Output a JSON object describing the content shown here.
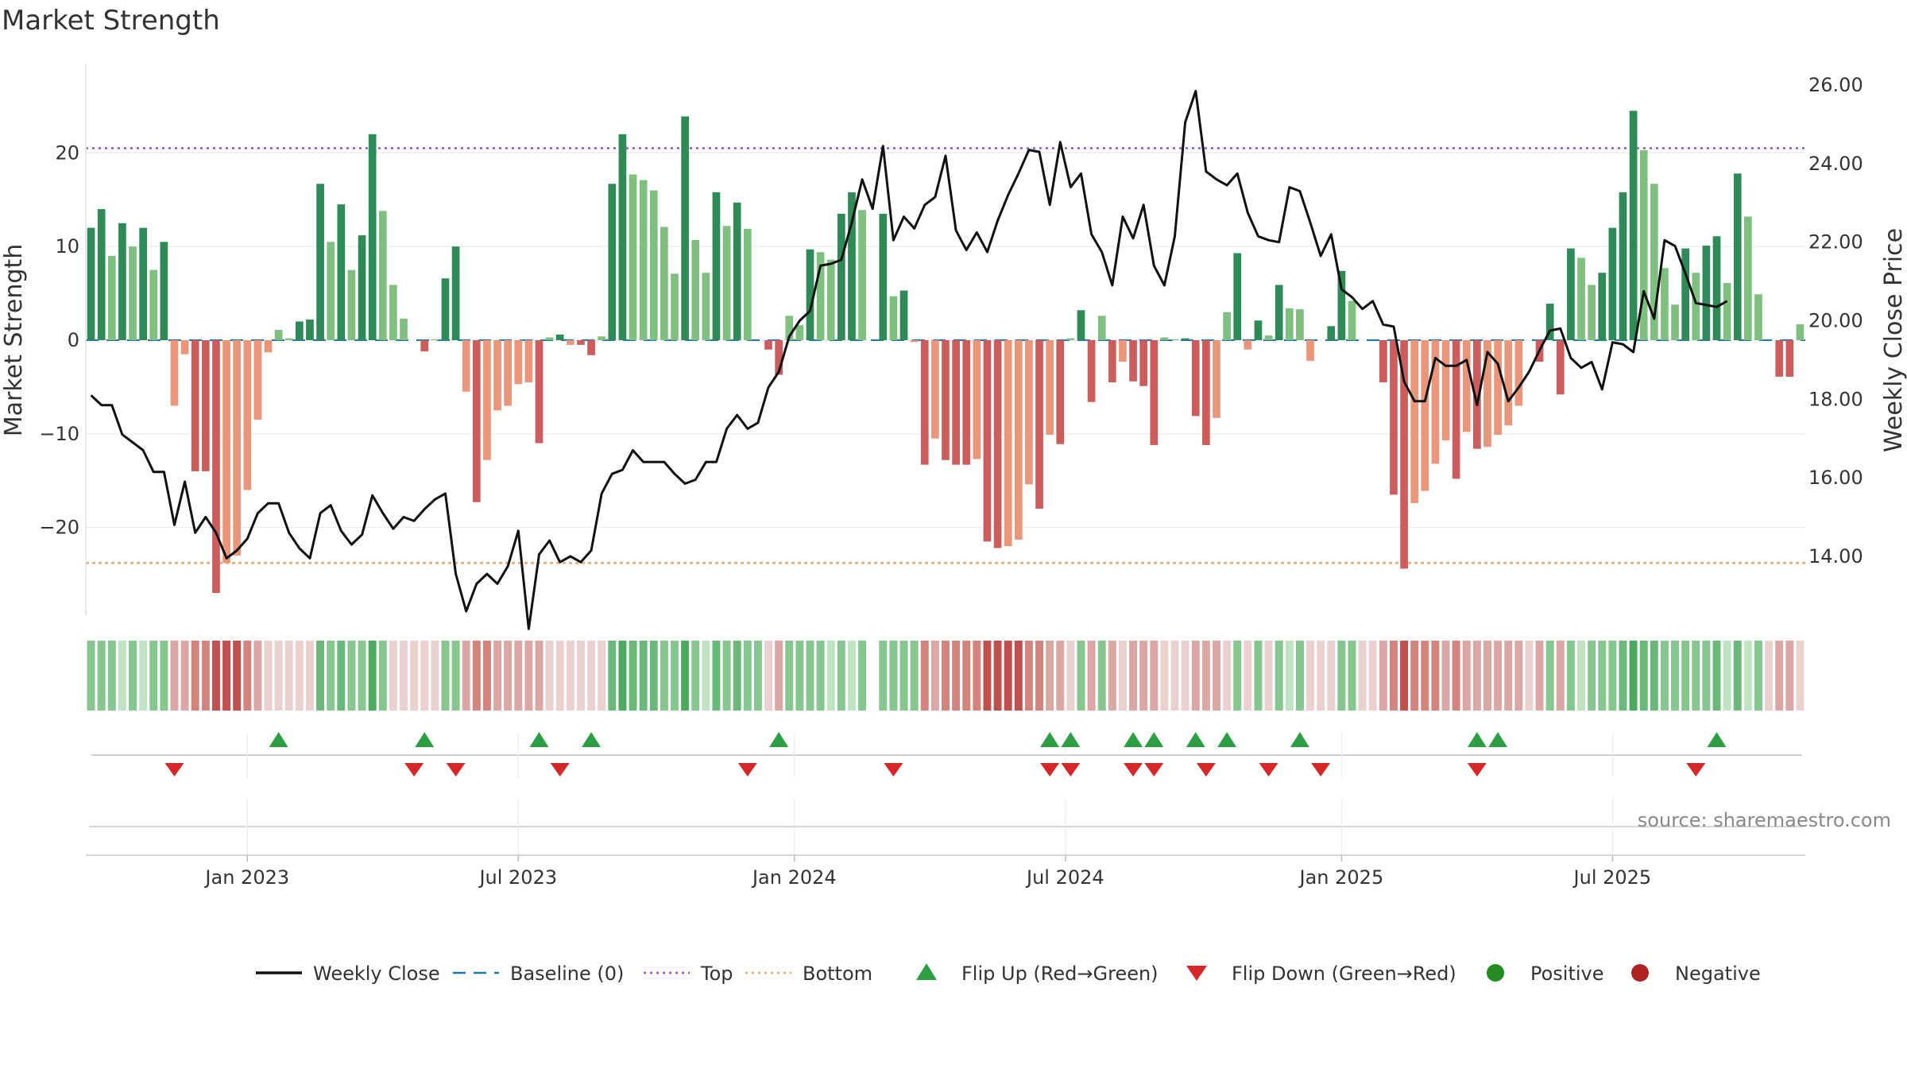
{
  "title": "Market Strength",
  "source": "source: sharemaestro.com",
  "colors": {
    "green_dark": "#2e8b57",
    "green_light": "#7fbf7f",
    "red_dark": "#cd5c5c",
    "red_light": "#e9967a",
    "close_line": "#111111",
    "baseline": "#1f77b4",
    "top": "#9b59b6",
    "bottom": "#f4a261",
    "flip_up": "#2e9e44",
    "flip_down": "#d62728",
    "positive": "#228b22",
    "negative": "#b22222"
  },
  "legend": [
    {
      "label": "Weekly Close",
      "kind": "line",
      "color": "#111111"
    },
    {
      "label": "Baseline (0)",
      "kind": "dash",
      "color": "#1f77b4"
    },
    {
      "label": "Top",
      "kind": "dot",
      "color": "#9b59b6"
    },
    {
      "label": "Bottom",
      "kind": "dot",
      "color": "#f4a261"
    },
    {
      "label": "Flip Up (Red→Green)",
      "kind": "up",
      "color": "#2e9e44"
    },
    {
      "label": "Flip Down (Green→Red)",
      "kind": "down",
      "color": "#d62728"
    },
    {
      "label": "Positive",
      "kind": "circle",
      "color": "#228b22"
    },
    {
      "label": "Negative",
      "kind": "circle",
      "color": "#b22222"
    }
  ],
  "chart_data": {
    "type": "bar",
    "title": "Market Strength",
    "ylabel_left": "Market Strength",
    "ylabel_right": "Weekly Close Price",
    "y_left_ticks": [
      20,
      10,
      0,
      -10,
      -20
    ],
    "y_left_tick_labels": [
      "20",
      "10",
      "0",
      "−10",
      "−20"
    ],
    "y_right_ticks": [
      26,
      24,
      22,
      20,
      18,
      16,
      14
    ],
    "y_right_tick_labels": [
      "26.00",
      "24.00",
      "22.00",
      "20.00",
      "18.00",
      "16.00",
      "14.00"
    ],
    "x_ticks": [
      "Jan 2023",
      "Jul 2023",
      "Jan 2024",
      "Jul 2024",
      "Jan 2025",
      "Jul 2025"
    ],
    "x_tick_weeks": [
      15.5,
      41.5,
      68,
      94,
      120.5,
      146.5
    ],
    "top_level": 20.5,
    "bottom_level": -23.8,
    "strength": [
      12,
      14,
      9,
      12.5,
      10,
      12,
      7.5,
      10.5,
      -7,
      -1.5,
      -14,
      -14,
      -27,
      -23.8,
      -23,
      -16,
      -8.5,
      -1.3,
      1.1,
      0.2,
      2,
      2.2,
      16.7,
      10.5,
      14.5,
      7.5,
      11.2,
      22,
      13.8,
      5.9,
      2.3,
      0,
      -1.2,
      0.1,
      6.6,
      10,
      -5.5,
      -17.3,
      -12.8,
      -7.5,
      -7,
      -4.7,
      -4.5,
      -11,
      0.3,
      0.6,
      -0.5,
      -0.5,
      -1.6,
      0.4,
      16.7,
      22,
      17.7,
      17.1,
      16,
      12.1,
      7.1,
      23.9,
      10.7,
      7.2,
      15.8,
      12.2,
      14.7,
      11.9,
      0,
      -1,
      -3.7,
      2.6,
      1.6,
      9.7,
      9.4,
      8.6,
      13.5,
      15.8,
      13.9,
      0,
      13.5,
      4.7,
      5.3,
      -0.2,
      -13.3,
      -10.5,
      -12.8,
      -13.3,
      -13.3,
      -12.7,
      -21.5,
      -22.2,
      -22,
      -21.3,
      -15.4,
      -18,
      -10.1,
      -11.1,
      0.2,
      3.2,
      -6.6,
      2.6,
      -4.5,
      -2.3,
      -4.4,
      -4.9,
      -11.2,
      0.3,
      0.1,
      0.2,
      -8.1,
      -11.2,
      -8.3,
      3,
      9.3,
      -1,
      2.1,
      0.5,
      5.9,
      3.4,
      3.3,
      -2.2,
      0,
      1.5,
      7.4,
      4.2,
      0,
      0,
      -4.5,
      -16.5,
      -24.4,
      -17.4,
      -16.1,
      -13.2,
      -10.7,
      -14.8,
      -9.8,
      -11.6,
      -11.4,
      -10.1,
      -9.1,
      -7,
      0,
      -2.3,
      3.9,
      -5.8,
      9.8,
      8.8,
      5.9,
      7.2,
      12,
      15.8,
      24.5,
      20.3,
      16.7,
      7.7,
      3.8,
      9.8,
      7.2,
      10.1,
      11.1,
      6.1,
      17.8,
      13.2,
      4.9,
      0,
      -3.9,
      -3.9,
      1.7
    ],
    "weekly_close": [
      18.1,
      17.85,
      17.85,
      17.1,
      16.9,
      16.7,
      16.15,
      16.15,
      14.8,
      15.9,
      14.6,
      15,
      14.6,
      13.95,
      14.15,
      14.45,
      15.1,
      15.35,
      15.35,
      14.6,
      14.2,
      13.95,
      15.1,
      15.3,
      14.65,
      14.3,
      14.55,
      15.55,
      15.1,
      14.7,
      15,
      14.9,
      15.2,
      15.45,
      15.6,
      13.55,
      12.6,
      13.3,
      13.55,
      13.3,
      13.75,
      14.65,
      12.15,
      14.05,
      14.4,
      13.85,
      14,
      13.85,
      14.15,
      15.6,
      16.1,
      16.2,
      16.7,
      16.4,
      16.4,
      16.4,
      16.1,
      15.85,
      15.95,
      16.4,
      16.4,
      17.25,
      17.6,
      17.25,
      17.4,
      18.3,
      18.7,
      19.6,
      20,
      20.25,
      21.4,
      21.45,
      21.55,
      22.5,
      23.6,
      22.85,
      24.45,
      22.05,
      22.65,
      22.35,
      22.95,
      23.15,
      24.2,
      22.3,
      21.8,
      22.25,
      21.75,
      22.55,
      23.2,
      23.75,
      24.35,
      24.3,
      22.95,
      24.55,
      23.4,
      23.75,
      22.2,
      21.75,
      20.9,
      22.65,
      22.1,
      22.95,
      21.4,
      20.9,
      22.15,
      25.05,
      25.85,
      23.8,
      23.6,
      23.45,
      23.75,
      22.75,
      22.15,
      22.05,
      22,
      23.4,
      23.3,
      22.5,
      21.65,
      22.2,
      20.8,
      20.6,
      20.3,
      20.5,
      19.9,
      19.85,
      18.45,
      17.95,
      17.95,
      19.05,
      18.85,
      18.85,
      19,
      17.85,
      19.2,
      18.9,
      17.95,
      18.3,
      18.7,
      19.25,
      19.75,
      19.8,
      19.05,
      18.8,
      18.95,
      18.25,
      19.45,
      19.4,
      19.2,
      20.75,
      20.05,
      22.05,
      21.9,
      21.2,
      20.45,
      20.4,
      20.35,
      20.5
    ],
    "heat_levels": [
      1,
      1,
      1,
      1,
      1,
      1,
      1,
      1,
      -1,
      -1,
      -2,
      -2,
      -3,
      -3,
      -3,
      -2,
      -1,
      0,
      0,
      0,
      0,
      0,
      2,
      1,
      2,
      1,
      1,
      3,
      1,
      0,
      0,
      0,
      0,
      0,
      1,
      1,
      -1,
      -2,
      -2,
      -1,
      -1,
      -1,
      -1,
      -1,
      0,
      0,
      0,
      0,
      0,
      0,
      2,
      3,
      2,
      2,
      2,
      1,
      1,
      3,
      1,
      1,
      2,
      1,
      2,
      1,
      1,
      0,
      -1,
      1,
      1,
      1,
      1,
      1,
      1,
      1,
      1,
      null,
      1,
      1,
      1,
      1,
      -2,
      -1,
      -2,
      -2,
      -2,
      -2,
      -3,
      -3,
      -3,
      -3,
      -2,
      -2,
      -1,
      -1,
      0,
      1,
      -1,
      1,
      -1,
      0,
      -1,
      -1,
      -1,
      0,
      0,
      0,
      -1,
      -1,
      -1,
      0,
      1,
      0,
      1,
      0,
      1,
      1,
      1,
      0,
      0,
      0,
      1,
      1,
      0,
      0,
      -1,
      -2,
      -3,
      -2,
      -2,
      -2,
      -1,
      -2,
      -1,
      -1,
      -1,
      -1,
      -1,
      -1,
      0,
      -1,
      1,
      -1,
      1,
      1,
      1,
      1,
      1,
      2,
      3,
      2,
      2,
      1,
      1,
      1,
      1,
      1,
      2,
      1,
      2,
      1,
      1,
      0,
      -1,
      -1,
      0
    ],
    "flip_up_weeks": [
      18.5,
      32.5,
      43.5,
      48.5,
      66.5,
      92.5,
      94.5,
      100.5,
      102.5,
      106.5,
      109.5,
      116.5,
      133.5,
      135.5,
      156.5
    ],
    "flip_down_weeks": [
      8.5,
      31.5,
      35.5,
      45.5,
      63.5,
      77.5,
      92.5,
      94.5,
      100.5,
      102.5,
      107.5,
      113.5,
      118.5,
      133.5,
      154.5
    ]
  }
}
